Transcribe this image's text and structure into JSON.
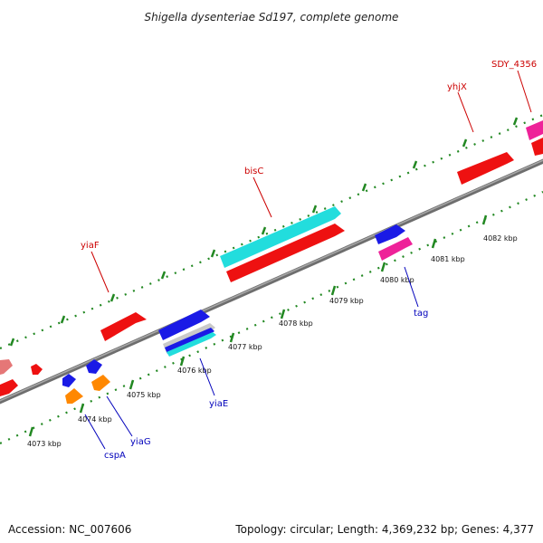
{
  "title": "Shigella dysenteriae Sd197, complete genome",
  "footer": {
    "accession": "Accession: NC_007606",
    "summary": "Topology: circular; Length: 4,369,232 bp; Genes: 4,377"
  },
  "ticks": [
    "4073 kbp",
    "4074 kbp",
    "4075 kbp",
    "4076 kbp",
    "4077 kbp",
    "4078 kbp",
    "4079 kbp",
    "4080 kbp",
    "4081 kbp",
    "4082 kbp"
  ],
  "genes": [
    {
      "name": "SDY_4356",
      "color": "#cc0000"
    },
    {
      "name": "yhjX",
      "color": "#cc0000"
    },
    {
      "name": "bisC",
      "color": "#cc0000"
    },
    {
      "name": "yiaF",
      "color": "#cc0000"
    },
    {
      "name": "tag",
      "color": "#0000bb"
    },
    {
      "name": "yiaE",
      "color": "#0000bb"
    },
    {
      "name": "yiaG",
      "color": "#0000bb"
    },
    {
      "name": "cspA",
      "color": "#0000bb"
    }
  ],
  "colors": {
    "cds_red": "#ee1111",
    "cds_blue": "#1a1ae6",
    "rna_cyan": "#22dddd",
    "pink": "#ee2299",
    "orange": "#ff8800",
    "backbone": "#7a7a7a",
    "tick_green": "#228822"
  }
}
